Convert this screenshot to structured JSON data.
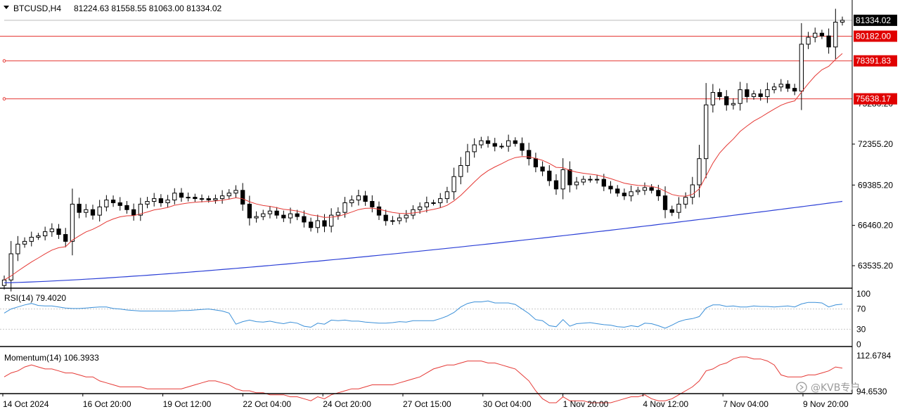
{
  "colors": {
    "background": "#ffffff",
    "axis": "#000000",
    "grid": "#c8c8c8",
    "candle_body": "#000000",
    "ema_fast": "#e53935",
    "ema_slow": "#2b3fd6",
    "rsi_line": "#3a8fd8",
    "momentum_line": "#e53935",
    "level_line": "#e53935",
    "price_label_bg": "#000000",
    "level_label_bg": "#e00000",
    "label_text": "#ffffff"
  },
  "header": {
    "dropdown_icon": "triangle-down-icon",
    "symbol": "BTCUSD,H4",
    "ohlc": "81224.63 81558.55 81063.00 81334.02"
  },
  "watermark": {
    "icon": "kvb-logo-icon",
    "text": "@KVB专户"
  },
  "chart_data": [
    {
      "type": "candlestick",
      "panel": "price",
      "y_ticks": [
        "63535.20",
        "66460.20",
        "69385.20",
        "72355.20"
      ],
      "hidden_tick_labels": [
        "81334.02",
        "75280.20"
      ],
      "ylim": [
        62000,
        82500
      ],
      "current_price": "81334.02",
      "levels": [
        {
          "label": "80182.00",
          "value": 80182.0
        },
        {
          "label": "78391.83",
          "value": 78391.83
        },
        {
          "label": "75638.17",
          "value": 75638.17
        }
      ],
      "close_series_approx": [
        62500,
        64400,
        65100,
        65300,
        65600,
        65700,
        66000,
        66200,
        65800,
        65300,
        68000,
        67400,
        67600,
        67200,
        67800,
        68300,
        68100,
        67900,
        67600,
        67200,
        68000,
        68200,
        68400,
        68100,
        68300,
        68800,
        68500,
        68500,
        68400,
        68400,
        68300,
        68400,
        68600,
        68800,
        69000,
        68000,
        67000,
        67100,
        67300,
        67500,
        67200,
        67000,
        67300,
        67100,
        66700,
        66300,
        66800,
        66400,
        67200,
        67400,
        68100,
        68300,
        68600,
        68200,
        67800,
        67200,
        66800,
        66800,
        67000,
        67200,
        67600,
        67800,
        68100,
        68100,
        68400,
        68900,
        70000,
        70800,
        71800,
        72300,
        72600,
        72400,
        72200,
        72200,
        72600,
        72400,
        71900,
        71300,
        70700,
        70400,
        69700,
        69100,
        70500,
        69400,
        69600,
        69800,
        69800,
        69800,
        69300,
        69100,
        68800,
        68600,
        68900,
        69000,
        69200,
        69000,
        68600,
        67600,
        67400,
        68000,
        68500,
        69400,
        71300,
        75200,
        76100,
        75800,
        75200,
        75300,
        76300,
        75800,
        76000,
        75800,
        76300,
        76500,
        76700,
        76400,
        76200,
        79600,
        80100,
        80400,
        80200,
        79400,
        81200,
        81334
      ]
    },
    {
      "type": "line",
      "panel": "rsi",
      "title": "RSI(14) 79.4020",
      "y_ticks": [
        "100",
        "70",
        "30",
        "0"
      ],
      "levels": [
        70,
        30
      ],
      "ylim": [
        0,
        100
      ],
      "last_value": 79.402,
      "values_approx": [
        62,
        70,
        74,
        78,
        81,
        77,
        76,
        76,
        74,
        72,
        71,
        71,
        72,
        73,
        74,
        74,
        71,
        70,
        68,
        67,
        66,
        66,
        66,
        66,
        66,
        66,
        67,
        67,
        68,
        69,
        70,
        68,
        66,
        62,
        40,
        45,
        48,
        45,
        44,
        46,
        43,
        41,
        44,
        42,
        36,
        34,
        42,
        40,
        48,
        47,
        48,
        46,
        46,
        44,
        43,
        42,
        42,
        43,
        45,
        44,
        47,
        47,
        47,
        47,
        51,
        56,
        63,
        74,
        81,
        84,
        84,
        86,
        82,
        82,
        82,
        79,
        70,
        61,
        49,
        47,
        37,
        35,
        49,
        36,
        41,
        42,
        43,
        41,
        39,
        38,
        35,
        34,
        37,
        35,
        42,
        41,
        37,
        32,
        38,
        45,
        49,
        51,
        55,
        72,
        78,
        78,
        75,
        76,
        74,
        74,
        76,
        75,
        75,
        74,
        75,
        76,
        74,
        80,
        83,
        83,
        82,
        74,
        78,
        79.4
      ]
    },
    {
      "type": "line",
      "panel": "momentum",
      "title": "Momentum(14) 106.3933",
      "y_ticks": [
        "112.6784",
        "94.6530"
      ],
      "last_value": 106.3933,
      "values_approx": [
        102,
        104,
        105,
        107,
        108,
        107,
        106,
        106,
        105,
        104,
        104,
        103,
        102,
        102,
        100,
        99,
        98,
        97,
        97,
        97,
        97,
        96,
        96,
        96,
        96,
        96,
        96,
        97,
        98,
        99,
        100,
        100,
        99,
        98,
        96,
        95,
        95,
        94,
        94,
        93,
        93,
        93,
        92,
        92,
        91,
        90,
        92,
        91,
        93,
        94,
        95,
        96,
        96,
        97,
        98,
        98,
        98,
        98,
        99,
        100,
        101,
        102,
        104,
        106,
        107,
        108,
        108,
        109,
        110,
        110,
        110,
        109,
        109,
        108,
        107,
        106,
        103,
        100,
        95,
        91,
        89,
        89,
        92,
        90,
        90,
        90,
        89,
        89,
        89,
        89,
        90,
        91,
        92,
        92,
        93,
        91,
        90,
        90,
        91,
        93,
        95,
        97,
        100,
        105,
        106,
        108,
        109,
        111,
        112,
        112,
        111,
        111,
        110,
        108,
        103,
        102,
        102,
        102,
        103,
        103,
        104,
        105,
        107,
        106.4
      ]
    }
  ],
  "x_axis": {
    "labels": [
      "14 Oct 2024",
      "16 Oct 20:00",
      "19 Oct 12:00",
      "22 Oct 04:00",
      "24 Oct 20:00",
      "27 Oct 15:00",
      "30 Oct 04:00",
      "1 Nov 20:00",
      "4 Nov 12:00",
      "7 Nov 04:00",
      "9 Nov 20:00"
    ]
  }
}
